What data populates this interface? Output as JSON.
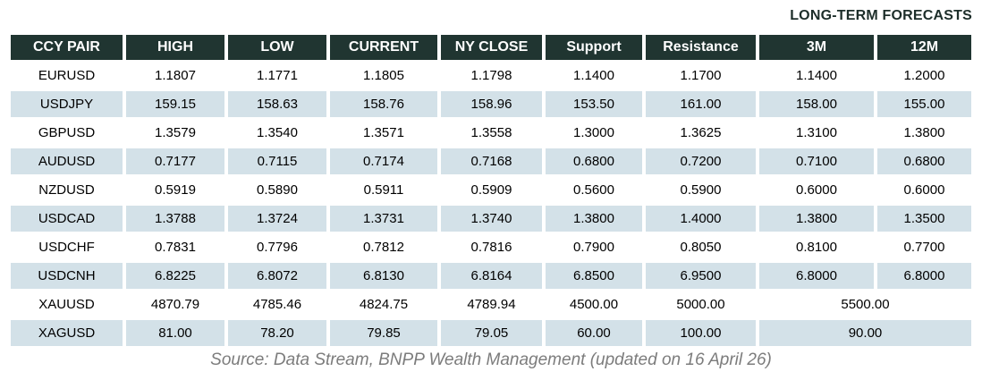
{
  "note": "LONG-TERM FORECASTS",
  "source": "Source: Data Stream, BNPP Wealth Management (updated on 16 April 26)",
  "colors": {
    "header_bg": "#203531",
    "header_text": "#ffffff",
    "alt_row_bg": "#d3e1e8",
    "note_text": "#1d2e2a",
    "source_text": "#7c7c7c"
  },
  "chart_data": {
    "type": "table",
    "title": "LONG-TERM FORECASTS",
    "columns": [
      "CCY PAIR",
      "HIGH",
      "LOW",
      "CURRENT",
      "NY CLOSE",
      "Support",
      "Resistance",
      "3M",
      "12M"
    ],
    "forecast_columns": [
      "3M",
      "12M"
    ],
    "rows": [
      {
        "pair": "EURUSD",
        "values": [
          "1.1807",
          "1.1771",
          "1.1805",
          "1.1798",
          "1.1400",
          "1.1700",
          "1.1400",
          "1.2000"
        ]
      },
      {
        "pair": "USDJPY",
        "values": [
          "159.15",
          "158.63",
          "158.76",
          "158.96",
          "153.50",
          "161.00",
          "158.00",
          "155.00"
        ]
      },
      {
        "pair": "GBPUSD",
        "values": [
          "1.3579",
          "1.3540",
          "1.3571",
          "1.3558",
          "1.3000",
          "1.3625",
          "1.3100",
          "1.3800"
        ]
      },
      {
        "pair": "AUDUSD",
        "values": [
          "0.7177",
          "0.7115",
          "0.7174",
          "0.7168",
          "0.6800",
          "0.7200",
          "0.7100",
          "0.6800"
        ]
      },
      {
        "pair": "NZDUSD",
        "values": [
          "0.5919",
          "0.5890",
          "0.5911",
          "0.5909",
          "0.5600",
          "0.5900",
          "0.6000",
          "0.6000"
        ]
      },
      {
        "pair": "USDCAD",
        "values": [
          "1.3788",
          "1.3724",
          "1.3731",
          "1.3740",
          "1.3800",
          "1.4000",
          "1.3800",
          "1.3500"
        ]
      },
      {
        "pair": "USDCHF",
        "values": [
          "0.7831",
          "0.7796",
          "0.7812",
          "0.7816",
          "0.7900",
          "0.8050",
          "0.8100",
          "0.7700"
        ]
      },
      {
        "pair": "USDCNH",
        "values": [
          "6.8225",
          "6.8072",
          "6.8130",
          "6.8164",
          "6.8500",
          "6.9500",
          "6.8000",
          "6.8000"
        ]
      },
      {
        "pair": "XAUUSD",
        "values": [
          "4870.79",
          "4785.46",
          "4824.75",
          "4789.94",
          "4500.00",
          "5000.00"
        ],
        "merged_forecast": "5500.00"
      },
      {
        "pair": "XAGUSD",
        "values": [
          "81.00",
          "78.20",
          "79.85",
          "79.05",
          "60.00",
          "100.00"
        ],
        "merged_forecast": "90.00"
      }
    ]
  }
}
